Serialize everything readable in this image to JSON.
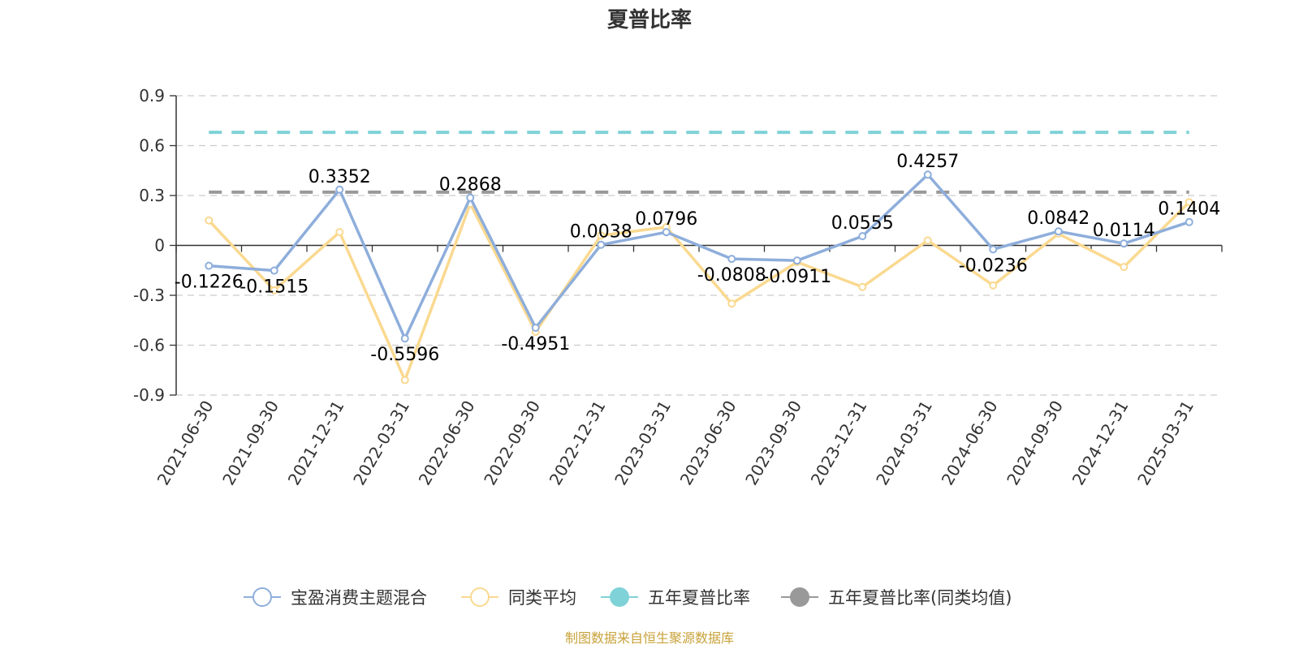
{
  "chart_data": {
    "type": "line",
    "title": "夏普比率",
    "categories": [
      "2021-06-30",
      "2021-09-30",
      "2021-12-31",
      "2022-03-31",
      "2022-06-30",
      "2022-09-30",
      "2022-12-31",
      "2023-03-31",
      "2023-06-30",
      "2023-09-30",
      "2023-12-31",
      "2024-03-31",
      "2024-06-30",
      "2024-09-30",
      "2024-12-31",
      "2025-03-31"
    ],
    "y_ticks": [
      "0.9",
      "0.6",
      "0.3",
      "0",
      "-0.3",
      "-0.6",
      "-0.9"
    ],
    "ylim": [
      -0.9,
      0.9
    ],
    "grid": true,
    "legend_position": "bottom",
    "series": [
      {
        "name": "宝盈消费主题混合",
        "color": "#8eaedb",
        "values": [
          -0.1226,
          -0.1515,
          0.3352,
          -0.5596,
          0.2868,
          -0.4951,
          0.0038,
          0.0796,
          -0.0808,
          -0.0911,
          0.0555,
          0.4257,
          -0.0236,
          0.0842,
          0.0114,
          0.1404
        ],
        "labels": [
          "-0.1226",
          "-0.1515",
          "0.3352",
          "-0.5596",
          "0.2868",
          "-0.4951",
          "0.0038",
          "0.0796",
          "-0.0808",
          "-0.0911",
          "0.0555",
          "0.4257",
          "-0.0236",
          "0.0842",
          "0.0114",
          "0.1404"
        ]
      },
      {
        "name": "同类平均",
        "color": "#fad990",
        "values": [
          0.15,
          -0.27,
          0.08,
          -0.81,
          0.25,
          -0.52,
          0.06,
          0.11,
          -0.35,
          -0.1,
          -0.25,
          0.03,
          -0.24,
          0.07,
          -0.13,
          0.26
        ]
      },
      {
        "name": "五年夏普比率",
        "color": "#7fd2d8",
        "value": 0.68
      },
      {
        "name": "五年夏普比率(同类均值)",
        "color": "#999999",
        "value": 0.32
      }
    ]
  },
  "source_note": "制图数据来自恒生聚源数据库"
}
